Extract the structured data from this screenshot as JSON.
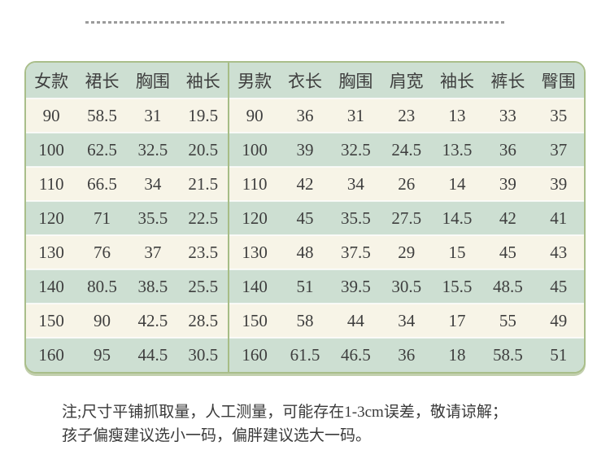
{
  "chart_data": [
    {
      "type": "table",
      "title": "女款",
      "columns": [
        "女款",
        "裙长",
        "胸围",
        "袖长"
      ],
      "rows": [
        [
          "90",
          "58.5",
          "31",
          "19.5"
        ],
        [
          "100",
          "62.5",
          "32.5",
          "20.5"
        ],
        [
          "110",
          "66.5",
          "34",
          "21.5"
        ],
        [
          "120",
          "71",
          "35.5",
          "22.5"
        ],
        [
          "130",
          "76",
          "37",
          "23.5"
        ],
        [
          "140",
          "80.5",
          "38.5",
          "25.5"
        ],
        [
          "150",
          "90",
          "42.5",
          "28.5"
        ],
        [
          "160",
          "95",
          "44.5",
          "30.5"
        ]
      ]
    },
    {
      "type": "table",
      "title": "男款",
      "columns": [
        "男款",
        "衣长",
        "胸围",
        "肩宽",
        "袖长",
        "裤长",
        "臀围"
      ],
      "rows": [
        [
          "90",
          "36",
          "31",
          "23",
          "13",
          "33",
          "35"
        ],
        [
          "100",
          "39",
          "32.5",
          "24.5",
          "13.5",
          "36",
          "37"
        ],
        [
          "110",
          "42",
          "34",
          "26",
          "14",
          "39",
          "39"
        ],
        [
          "120",
          "45",
          "35.5",
          "27.5",
          "14.5",
          "42",
          "41"
        ],
        [
          "130",
          "48",
          "37.5",
          "29",
          "15",
          "45",
          "43"
        ],
        [
          "140",
          "51",
          "39.5",
          "30.5",
          "15.5",
          "48.5",
          "45"
        ],
        [
          "150",
          "58",
          "44",
          "34",
          "17",
          "55",
          "49"
        ],
        [
          "160",
          "61.5",
          "46.5",
          "36",
          "18",
          "58.5",
          "51"
        ]
      ]
    }
  ],
  "note": {
    "line1": "注;尺寸平铺抓取量，人工测量，可能存在1-3cm误差，敬请谅解；",
    "line2": "孩子偏瘦建议选小一码，偏胖建议选大一码。"
  },
  "colors": {
    "row_green": "#cddfd2",
    "row_cream": "#f7f4e7",
    "table_border": "#a9be8a",
    "section_divider": "#a6bd85",
    "dashed_line": "#9b9b9b",
    "text": "#3e3e3e"
  }
}
